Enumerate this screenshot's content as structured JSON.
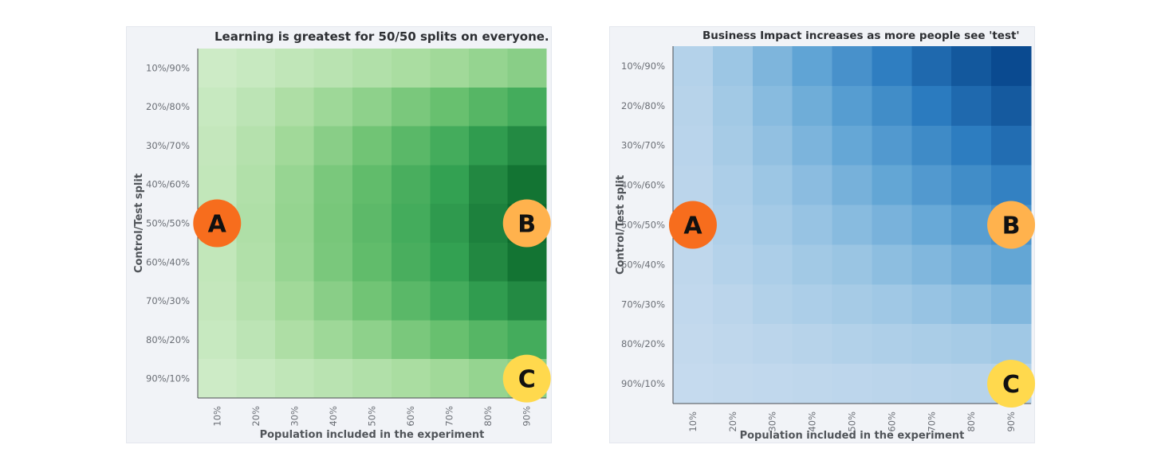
{
  "chart_data": [
    {
      "type": "heatmap",
      "title": "Learning is greatest for 50/50 splits on everyone.",
      "xlabel": "Population included in the experiment",
      "ylabel": "Control/Test split",
      "x_categories": [
        "10%",
        "20%",
        "30%",
        "40%",
        "50%",
        "60%",
        "70%",
        "80%",
        "90%"
      ],
      "y_categories": [
        "10%/90%",
        "20%/80%",
        "30%/70%",
        "40%/60%",
        "50%/50%",
        "60%/40%",
        "70%/30%",
        "80%/20%",
        "90%/10%"
      ],
      "colorscale": [
        "#d6efd0",
        "#a8dc9f",
        "#6cc271",
        "#35a354",
        "#0d6b2d"
      ],
      "values": [
        [
          0.05,
          0.08,
          0.12,
          0.16,
          0.2,
          0.24,
          0.28,
          0.33,
          0.38
        ],
        [
          0.08,
          0.14,
          0.22,
          0.29,
          0.36,
          0.44,
          0.52,
          0.6,
          0.68
        ],
        [
          0.1,
          0.18,
          0.28,
          0.38,
          0.48,
          0.58,
          0.68,
          0.78,
          0.86
        ],
        [
          0.11,
          0.2,
          0.32,
          0.44,
          0.55,
          0.66,
          0.76,
          0.87,
          0.96
        ],
        [
          0.12,
          0.21,
          0.33,
          0.45,
          0.57,
          0.68,
          0.79,
          0.9,
          1.0
        ],
        [
          0.11,
          0.2,
          0.32,
          0.44,
          0.55,
          0.66,
          0.76,
          0.87,
          0.96
        ],
        [
          0.1,
          0.18,
          0.28,
          0.38,
          0.48,
          0.58,
          0.68,
          0.78,
          0.86
        ],
        [
          0.08,
          0.14,
          0.22,
          0.29,
          0.36,
          0.44,
          0.52,
          0.6,
          0.68
        ],
        [
          0.05,
          0.08,
          0.12,
          0.16,
          0.2,
          0.24,
          0.28,
          0.33,
          0.38
        ]
      ],
      "markers": [
        {
          "label": "A",
          "x": "10%",
          "y": "50%/50%",
          "color": "#f76d1d"
        },
        {
          "label": "B",
          "x": "90%",
          "y": "50%/50%",
          "color": "#ffb24d"
        },
        {
          "label": "C",
          "x": "90%",
          "y": "90%/10%",
          "color": "#ffd94d"
        }
      ]
    },
    {
      "type": "heatmap",
      "title": "Business Impact increases as more people see 'test'",
      "xlabel": "Population included in the experiment",
      "ylabel": "Control/Test split",
      "x_categories": [
        "10%",
        "20%",
        "30%",
        "40%",
        "50%",
        "60%",
        "70%",
        "80%",
        "90%"
      ],
      "y_categories": [
        "10%/90%",
        "20%/80%",
        "30%/70%",
        "40%/60%",
        "50%/50%",
        "60%/40%",
        "70%/30%",
        "80%/20%",
        "90%/10%"
      ],
      "colorscale": [
        "#cfdff0",
        "#9cc6e4",
        "#5ea3d4",
        "#2b7bbf",
        "#0a4a90"
      ],
      "values": [
        [
          0.13,
          0.25,
          0.37,
          0.49,
          0.61,
          0.73,
          0.84,
          0.93,
          1.0
        ],
        [
          0.12,
          0.22,
          0.33,
          0.43,
          0.54,
          0.64,
          0.75,
          0.84,
          0.92
        ],
        [
          0.11,
          0.2,
          0.29,
          0.38,
          0.47,
          0.56,
          0.65,
          0.74,
          0.82
        ],
        [
          0.1,
          0.17,
          0.25,
          0.32,
          0.4,
          0.48,
          0.56,
          0.64,
          0.71
        ],
        [
          0.09,
          0.15,
          0.21,
          0.27,
          0.33,
          0.39,
          0.46,
          0.53,
          0.6
        ],
        [
          0.08,
          0.13,
          0.17,
          0.22,
          0.26,
          0.31,
          0.36,
          0.42,
          0.48
        ],
        [
          0.07,
          0.1,
          0.14,
          0.17,
          0.2,
          0.23,
          0.27,
          0.31,
          0.36
        ],
        [
          0.06,
          0.08,
          0.1,
          0.12,
          0.14,
          0.16,
          0.18,
          0.2,
          0.23
        ],
        [
          0.05,
          0.06,
          0.07,
          0.08,
          0.09,
          0.1,
          0.11,
          0.12,
          0.13
        ]
      ],
      "markers": [
        {
          "label": "A",
          "x": "10%",
          "y": "50%/50%",
          "color": "#f76d1d"
        },
        {
          "label": "B",
          "x": "90%",
          "y": "50%/50%",
          "color": "#ffb24d"
        },
        {
          "label": "C",
          "x": "90%",
          "y": "90%/10%",
          "color": "#ffd94d"
        }
      ]
    }
  ]
}
